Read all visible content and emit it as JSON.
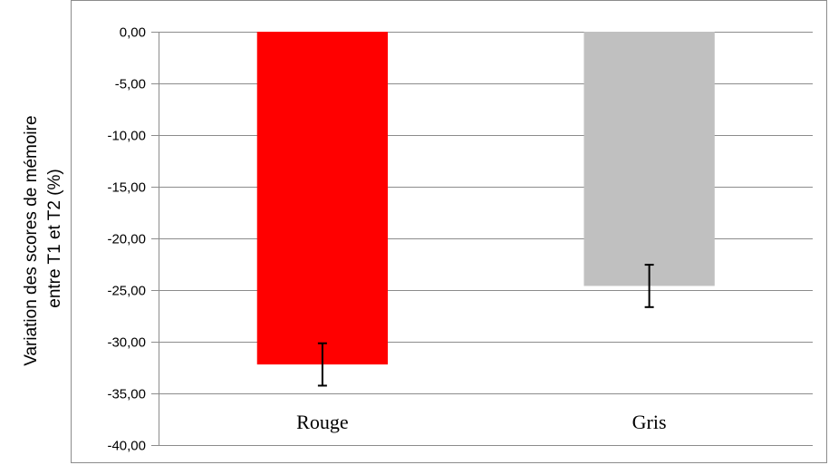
{
  "chart_data": {
    "type": "bar",
    "title": "",
    "ylabel": [
      "Variation des scores de mémoire",
      "entre T1 et T2 (%)"
    ],
    "xlabel": "",
    "categories": [
      "Rouge",
      "Gris"
    ],
    "values": [
      -32.2,
      -24.6
    ],
    "errors": [
      2.05,
      2.05
    ],
    "colors": [
      "#ff0000",
      "#c0c0c0"
    ],
    "ylim": [
      -40,
      0
    ],
    "yticks": [
      0,
      -5,
      -10,
      -15,
      -20,
      -25,
      -30,
      -35,
      -40
    ],
    "ytick_labels": [
      "0,00",
      "-5,00",
      "-10,00",
      "-15,00",
      "-20,00",
      "-25,00",
      "-30,00",
      "-35,00",
      "-40,00"
    ],
    "grid": true,
    "legend": "none"
  }
}
